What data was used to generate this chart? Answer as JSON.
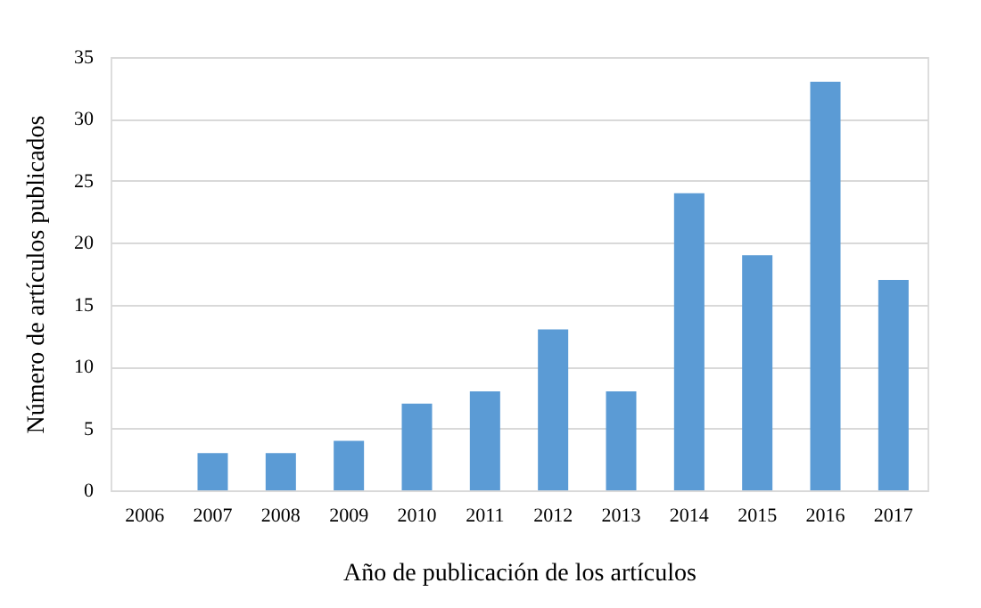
{
  "chart_data": {
    "type": "bar",
    "xlabel": "Año de publicación de los artículos",
    "ylabel": "Número de artículos publicados",
    "categories": [
      "2006",
      "2007",
      "2008",
      "2009",
      "2010",
      "2011",
      "2012",
      "2013",
      "2014",
      "2015",
      "2016",
      "2017"
    ],
    "values": [
      0,
      3,
      3,
      4,
      7,
      8,
      13,
      8,
      24,
      19,
      33,
      17
    ],
    "color": "#5b9bd5",
    "ylim": [
      0,
      35
    ],
    "yticks": [
      0,
      5,
      10,
      15,
      20,
      25,
      30,
      35
    ],
    "grid": "y"
  }
}
